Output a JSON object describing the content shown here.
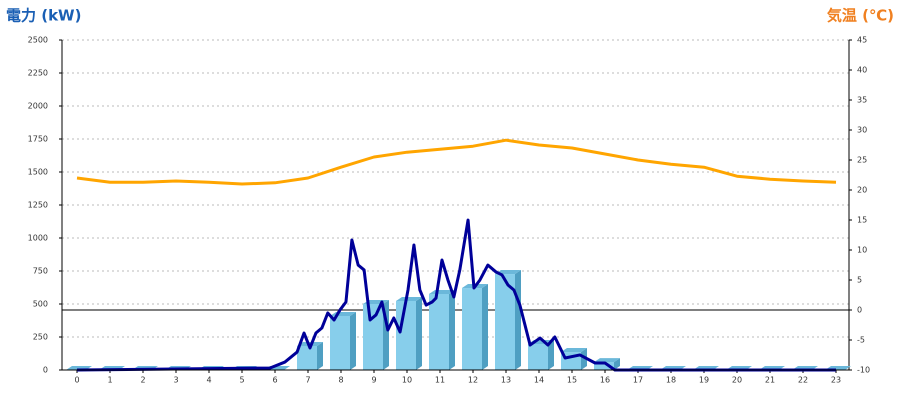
{
  "chart_data": {
    "type": "combo",
    "title_left": "電力 (kW)",
    "title_right": "気温 (℃)",
    "categories": [
      "0",
      "1",
      "2",
      "3",
      "4",
      "5",
      "6",
      "7",
      "8",
      "9",
      "10",
      "11",
      "12",
      "13",
      "14",
      "15",
      "16",
      "17",
      "18",
      "19",
      "20",
      "21",
      "22",
      "23"
    ],
    "ylim": [
      0,
      2500
    ],
    "yticks": [
      0,
      250,
      500,
      750,
      1000,
      1250,
      1500,
      1750,
      2000,
      2250,
      2500
    ],
    "y2lim": [
      -10,
      45
    ],
    "y2ticks": [
      -10,
      -5,
      0,
      5,
      10,
      15,
      20,
      25,
      30,
      35,
      40,
      45
    ],
    "grid": true,
    "y2_reference": 0,
    "series": [
      {
        "type": "bar",
        "color": "#87ceeb",
        "values": [
          0,
          0,
          0,
          0,
          0,
          0,
          0,
          182,
          409,
          500,
          523,
          576,
          621,
          727,
          197,
          136,
          60,
          0,
          0,
          0,
          0,
          0,
          0,
          0
        ]
      },
      {
        "type": "line",
        "color": "#000099",
        "x": [
          0,
          5.85,
          6.3,
          6.67,
          6.88,
          7.06,
          7.24,
          7.42,
          7.6,
          7.79,
          7.97,
          8.15,
          8.33,
          8.52,
          8.7,
          8.88,
          9.06,
          9.24,
          9.42,
          9.6,
          9.79,
          10.03,
          10.21,
          10.39,
          10.58,
          10.76,
          10.88,
          11.06,
          11.24,
          11.42,
          11.6,
          11.85,
          12.03,
          12.21,
          12.45,
          12.7,
          12.88,
          13.06,
          13.24,
          13.42,
          13.73,
          14.03,
          14.27,
          14.48,
          14.79,
          15.24,
          15.7,
          16,
          16.3,
          23
        ],
        "values": [
          0,
          15,
          60,
          136,
          280,
          167,
          280,
          318,
          432,
          379,
          455,
          515,
          985,
          795,
          758,
          379,
          417,
          515,
          303,
          394,
          288,
          606,
          947,
          606,
          492,
          515,
          545,
          833,
          682,
          553,
          758,
          1136,
          621,
          682,
          795,
          742,
          720,
          644,
          606,
          492,
          189,
          242,
          189,
          250,
          91,
          114,
          53,
          53,
          0,
          0
        ]
      },
      {
        "type": "line",
        "axis": "y2",
        "color": "#ffa500",
        "values": [
          22,
          21.3,
          21.3,
          21.5,
          21.3,
          21,
          21.2,
          22,
          23.8,
          25.5,
          26.3,
          26.8,
          27.3,
          28.3,
          27.5,
          27,
          26,
          25,
          24.3,
          23.8,
          22.3,
          21.8,
          21.5,
          21.3
        ]
      }
    ]
  }
}
